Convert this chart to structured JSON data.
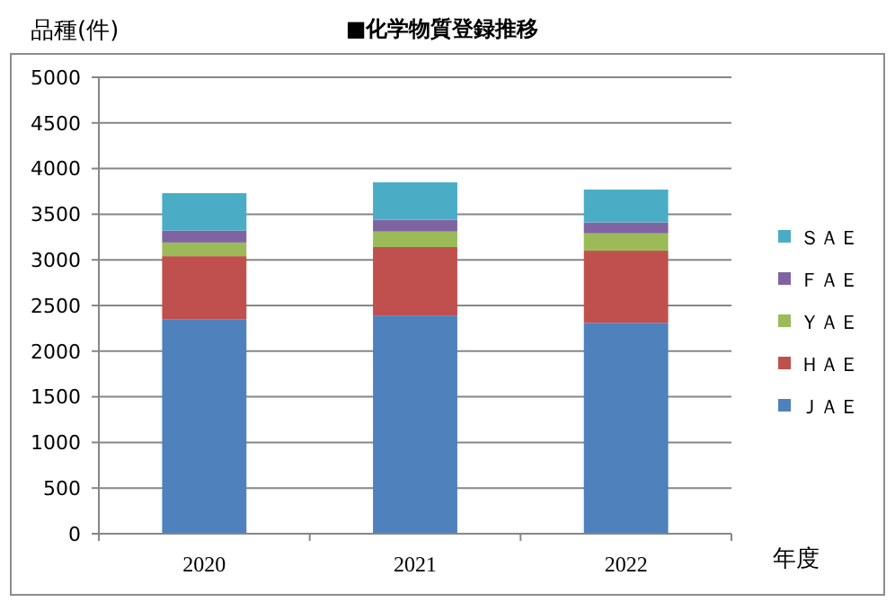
{
  "chart_data": {
    "type": "bar",
    "title": "■化学物質登録推移",
    "ylabel": "品種(件)",
    "xlabel": "年度",
    "categories": [
      "2020",
      "2021",
      "2022"
    ],
    "stacked": true,
    "series": [
      {
        "name": "ＪＡＥ",
        "color": "#4f81bd",
        "values": [
          2350,
          2390,
          2310
        ]
      },
      {
        "name": "ＨＡＥ",
        "color": "#c0504d",
        "values": [
          690,
          750,
          790
        ]
      },
      {
        "name": "ＹＡＥ",
        "color": "#9bbb59",
        "values": [
          150,
          170,
          190
        ]
      },
      {
        "name": "ＦＡＥ",
        "color": "#8064a2",
        "values": [
          130,
          130,
          120
        ]
      },
      {
        "name": "ＳＡＥ",
        "color": "#4bacc6",
        "values": [
          410,
          410,
          360
        ]
      }
    ],
    "ylim": [
      0,
      5000
    ],
    "yticks": [
      0,
      500,
      1000,
      1500,
      2000,
      2500,
      3000,
      3500,
      4000,
      4500,
      5000
    ],
    "grid": "y",
    "legend": "right"
  }
}
